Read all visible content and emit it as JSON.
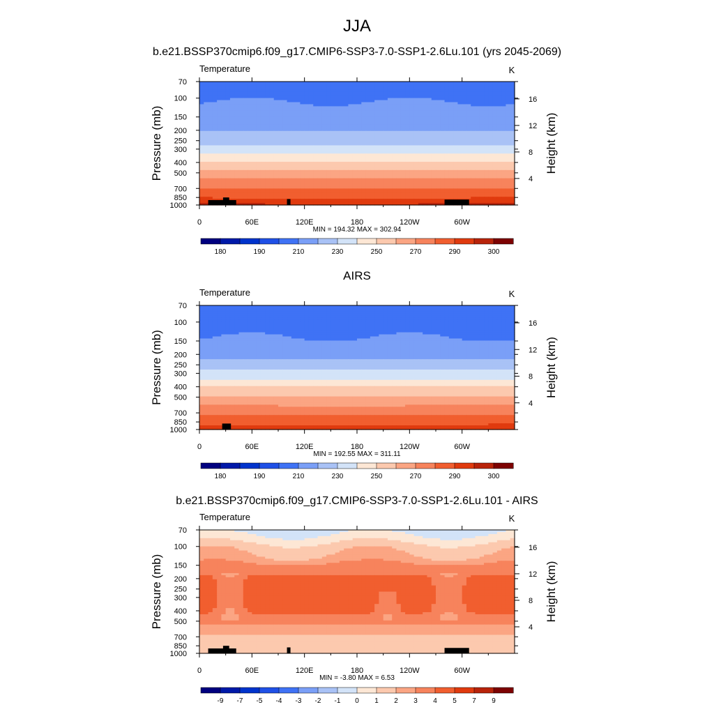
{
  "figure": {
    "title": "JJA",
    "panel_titles": [
      "b.e21.BSSP370cmip6.f09_g17.CMIP6-SSP3-7.0-SSP1-2.6Lu.101 (yrs 2045-2069)",
      "AIRS",
      "b.e21.BSSP370cmip6.f09_g17.CMIP6-SSP3-7.0-SSP1-2.6Lu.101 - AIRS"
    ]
  },
  "chart_data": [
    {
      "type": "heatmap",
      "name": "model",
      "title": "b.e21.BSSP370cmip6.f09_g17.CMIP6-SSP3-7.0-SSP1-2.6Lu.101 (yrs 2045-2069)",
      "left_label": "Temperature",
      "right_label": "K",
      "ylabel": "Pressure (mb)",
      "ylabel_right": "Height (km)",
      "xticks": [
        "0",
        "60E",
        "120E",
        "180",
        "120W",
        "60W"
      ],
      "yticks": [
        "70",
        "100",
        "150",
        "200",
        "250",
        "300",
        "400",
        "500",
        "700",
        "850",
        "1000"
      ],
      "yticks_right": [
        "16",
        "12",
        "8",
        "4"
      ],
      "x_range": [
        0,
        360
      ],
      "p_range": [
        70,
        1000
      ],
      "stats": "MIN = 194.32  MAX = 302.94",
      "colorbar_labels": [
        "180",
        "190",
        "210",
        "230",
        "250",
        "270",
        "290",
        "300"
      ],
      "colors": [
        "#00007f",
        "#0019a8",
        "#0033cc",
        "#1f50e6",
        "#3f72f5",
        "#7a9ff7",
        "#a9c2f6",
        "#d3e3f8",
        "#fde7d5",
        "#fcc9ae",
        "#fba583",
        "#f7835c",
        "#f15e2f",
        "#e03a0e",
        "#b8230a",
        "#7d0202"
      ],
      "levels": [
        175,
        180,
        185,
        190,
        200,
        210,
        220,
        230,
        240,
        250,
        260,
        270,
        280,
        290,
        295,
        300
      ],
      "profile": {
        "p": [
          70,
          100,
          150,
          200,
          250,
          300,
          400,
          500,
          700,
          850,
          1000
        ],
        "val": [
          206,
          209,
          214,
          219,
          226,
          235,
          252,
          263,
          280,
          289,
          296
        ]
      },
      "topography": "model"
    },
    {
      "type": "heatmap",
      "name": "airs",
      "title": "AIRS",
      "left_label": "Temperature",
      "right_label": "K",
      "ylabel": "Pressure (mb)",
      "ylabel_right": "Height (km)",
      "xticks": [
        "0",
        "60E",
        "120E",
        "180",
        "120W",
        "60W"
      ],
      "yticks": [
        "70",
        "100",
        "150",
        "200",
        "250",
        "300",
        "400",
        "500",
        "700",
        "850",
        "1000"
      ],
      "yticks_right": [
        "16",
        "12",
        "8",
        "4"
      ],
      "x_range": [
        0,
        360
      ],
      "p_range": [
        70,
        1000
      ],
      "stats": "MIN = 192.55  MAX = 311.11",
      "colorbar_labels": [
        "180",
        "190",
        "210",
        "230",
        "250",
        "270",
        "290",
        "300"
      ],
      "colors": [
        "#00007f",
        "#0019a8",
        "#0033cc",
        "#1f50e6",
        "#3f72f5",
        "#7a9ff7",
        "#a9c2f6",
        "#d3e3f8",
        "#fde7d5",
        "#fcc9ae",
        "#fba583",
        "#f7835c",
        "#f15e2f",
        "#e03a0e",
        "#b8230a",
        "#7d0202"
      ],
      "levels": [
        175,
        180,
        185,
        190,
        200,
        210,
        220,
        230,
        240,
        250,
        260,
        270,
        280,
        290,
        295,
        300
      ],
      "profile": {
        "p": [
          70,
          100,
          150,
          200,
          250,
          300,
          400,
          500,
          700,
          850,
          1000
        ],
        "val": [
          203,
          206,
          211,
          217,
          224,
          233,
          250,
          261,
          278,
          287,
          294
        ]
      },
      "topography": "airs"
    },
    {
      "type": "heatmap",
      "name": "diff",
      "title": "b.e21.BSSP370cmip6.f09_g17.CMIP6-SSP3-7.0-SSP1-2.6Lu.101 - AIRS",
      "left_label": "Temperature",
      "right_label": "K",
      "ylabel": "Pressure (mb)",
      "ylabel_right": "Height (km)",
      "xticks": [
        "0",
        "60E",
        "120E",
        "180",
        "120W",
        "60W"
      ],
      "yticks": [
        "70",
        "100",
        "150",
        "200",
        "250",
        "300",
        "400",
        "500",
        "700",
        "850",
        "1000"
      ],
      "yticks_right": [
        "16",
        "12",
        "8",
        "4"
      ],
      "x_range": [
        0,
        360
      ],
      "p_range": [
        70,
        1000
      ],
      "stats": "MIN =  -3.80  MAX =   6.53",
      "colorbar_labels": [
        "-9",
        "-7",
        "-5",
        "-4",
        "-3",
        "-2",
        "-1",
        "0",
        "1",
        "2",
        "3",
        "4",
        "5",
        "7",
        "9"
      ],
      "colors": [
        "#00007f",
        "#0019a8",
        "#0033cc",
        "#1f50e6",
        "#3f72f5",
        "#7a9ff7",
        "#a9c2f6",
        "#d3e3f8",
        "#fde7d5",
        "#fcc9ae",
        "#fba583",
        "#f7835c",
        "#f15e2f",
        "#e03a0e",
        "#b8230a",
        "#7d0202"
      ],
      "levels": [
        -99,
        -9,
        -7,
        -5,
        -4,
        -3,
        -2,
        -1,
        0,
        1,
        2,
        3,
        4,
        5,
        7,
        9
      ],
      "profile": {
        "p": [
          70,
          85,
          100,
          130,
          150,
          200,
          300,
          400,
          500,
          600,
          700,
          850,
          1000
        ],
        "val": [
          -0.5,
          0.5,
          1.5,
          2.3,
          3.3,
          4.3,
          4.5,
          4.2,
          3.6,
          2.4,
          1.8,
          1.6,
          1.6
        ]
      },
      "topography": "model"
    }
  ]
}
